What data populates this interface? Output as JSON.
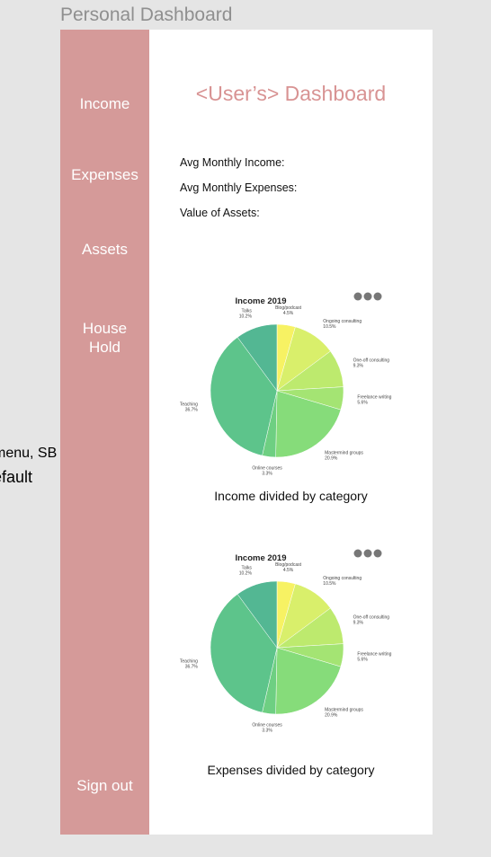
{
  "frame": {
    "title": "Personal Dashboard"
  },
  "side_note": {
    "line1": "menu, SB",
    "line2": "efault"
  },
  "sidebar": {
    "items": [
      {
        "label": "Income"
      },
      {
        "label": "Expenses"
      },
      {
        "label": "Assets"
      },
      {
        "label": "House Hold"
      }
    ],
    "signout_label": "Sign out"
  },
  "main": {
    "title": "<User’s> Dashboard",
    "stats": [
      {
        "label": "Avg Monthly Income:"
      },
      {
        "label": "Avg Monthly Expenses:"
      },
      {
        "label": "Value of Assets:"
      }
    ],
    "income_caption": "Income divided by category",
    "expenses_caption": "Expenses divided by category"
  },
  "chart_data": [
    {
      "type": "pie",
      "title": "Income 2019",
      "slices": [
        {
          "name": "Blog/podcast",
          "percent": 4.5,
          "label": "4.5%",
          "color": "#f7f263"
        },
        {
          "name": "Ongoing consulting",
          "percent": 10.5,
          "label": "10.5%",
          "color": "#d9ef6b"
        },
        {
          "name": "One-off consulting",
          "percent": 9.3,
          "label": "9.3%",
          "color": "#bdea6e"
        },
        {
          "name": "Freelance writing",
          "percent": 5.6,
          "label": "5.6%",
          "color": "#a4e473"
        },
        {
          "name": "Mastermind groups",
          "percent": 20.9,
          "label": "20.9%",
          "color": "#86dc7a"
        },
        {
          "name": "Online courses",
          "percent": 3.3,
          "label": "3.3%",
          "color": "#6ecf82"
        },
        {
          "name": "Teaching",
          "percent": 36.7,
          "label": "36.7%",
          "color": "#5dc48b"
        },
        {
          "name": "Talks",
          "percent": 10.2,
          "label": "10.2%",
          "color": "#53b793"
        }
      ]
    },
    {
      "type": "pie",
      "title": "Income 2019",
      "slices": [
        {
          "name": "Blog/podcast",
          "percent": 4.5,
          "label": "4.5%",
          "color": "#f7f263"
        },
        {
          "name": "Ongoing consulting",
          "percent": 10.5,
          "label": "10.5%",
          "color": "#d9ef6b"
        },
        {
          "name": "One-off consulting",
          "percent": 9.3,
          "label": "9.3%",
          "color": "#bdea6e"
        },
        {
          "name": "Freelance writing",
          "percent": 5.6,
          "label": "5.6%",
          "color": "#a4e473"
        },
        {
          "name": "Mastermind groups",
          "percent": 20.9,
          "label": "20.9%",
          "color": "#86dc7a"
        },
        {
          "name": "Online courses",
          "percent": 3.3,
          "label": "3.3%",
          "color": "#6ecf82"
        },
        {
          "name": "Teaching",
          "percent": 36.7,
          "label": "36.7%",
          "color": "#5dc48b"
        },
        {
          "name": "Talks",
          "percent": 10.2,
          "label": "10.2%",
          "color": "#53b793"
        }
      ]
    }
  ]
}
